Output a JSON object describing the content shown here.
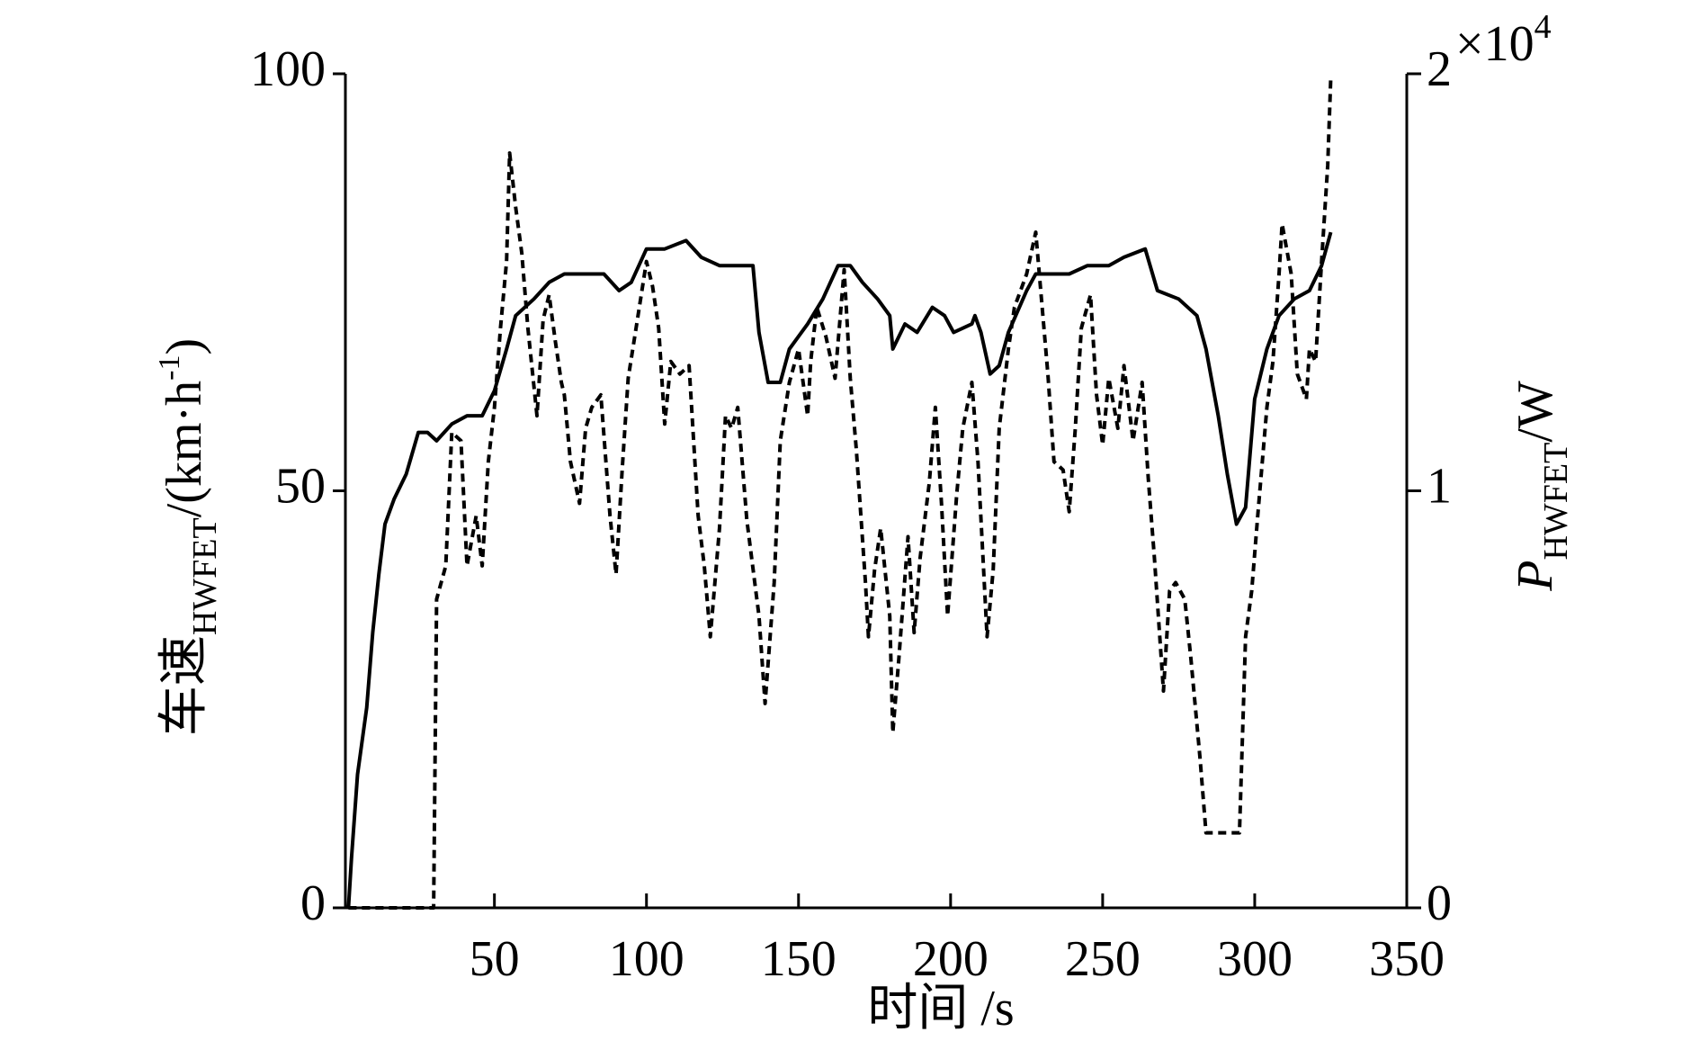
{
  "chart_data": {
    "type": "line",
    "x_label": "时间 /s",
    "y_label": {
      "text": "车速",
      "subscript": "HWFET",
      "unit": "/(km·h",
      "superscript": "-1",
      "close": ")"
    },
    "y2_label": {
      "text": "P",
      "subscript": "HWFET",
      "unit": "/W"
    },
    "y2_multiplier": {
      "text": "×10",
      "superscript": "4"
    },
    "xlim": [
      1,
      350
    ],
    "xticks": [
      50,
      100,
      150,
      200,
      250,
      300,
      350
    ],
    "ylim": [
      0,
      100
    ],
    "yticks": [
      0,
      50,
      100
    ],
    "y2lim": [
      0,
      20000
    ],
    "y2ticks": [
      {
        "value": 0,
        "label": "0"
      },
      {
        "value": 10000,
        "label": "1"
      },
      {
        "value": 20000,
        "label": "2"
      }
    ],
    "series": [
      {
        "color": "#000000",
        "style": "solid",
        "x": [
          2,
          3,
          5,
          8,
          10,
          12,
          14,
          17,
          21,
          25,
          28,
          31,
          36,
          41,
          46,
          50,
          54,
          57,
          63,
          68,
          73,
          79,
          86,
          91,
          95,
          100,
          106,
          113,
          118,
          124,
          129,
          135,
          137,
          140,
          144,
          147,
          153,
          158,
          163,
          167,
          171,
          176,
          180,
          181,
          185,
          189,
          194,
          198,
          201,
          207,
          208,
          210,
          213,
          216,
          219,
          225,
          228,
          234,
          239,
          245,
          252,
          257,
          264,
          268,
          275,
          281,
          284,
          288,
          291,
          294,
          297,
          300,
          304,
          308,
          313,
          318,
          322,
          325
        ],
        "values": [
          0,
          6,
          16,
          24,
          33,
          40,
          46,
          49,
          52,
          57,
          57,
          56,
          58,
          59,
          59,
          62,
          67,
          71,
          73,
          75,
          76,
          76,
          76,
          74,
          75,
          79,
          79,
          80,
          78,
          77,
          77,
          77,
          69,
          63,
          63,
          67,
          70,
          73,
          77,
          77,
          75,
          73,
          71,
          67,
          70,
          69,
          72,
          71,
          69,
          70,
          71,
          69,
          64,
          65,
          69,
          74,
          76,
          76,
          76,
          77,
          77,
          78,
          79,
          74,
          73,
          71,
          67,
          59,
          52,
          46,
          48,
          61,
          67,
          71,
          73,
          74,
          77,
          81
        ]
      },
      {
        "color": "#000000",
        "style": "dashed",
        "axis": "y2",
        "x": [
          2,
          30,
          31,
          34,
          36,
          39,
          41,
          44,
          46,
          48,
          50,
          52,
          54,
          55,
          57,
          59,
          61,
          64,
          66,
          68,
          70,
          72,
          73,
          75,
          78,
          80,
          82,
          85,
          88,
          90,
          92,
          94,
          97,
          100,
          102,
          104,
          106,
          108,
          111,
          114,
          117,
          119,
          121,
          124,
          126,
          128,
          130,
          133,
          137,
          139,
          142,
          144,
          147,
          150,
          153,
          154,
          156,
          159,
          162,
          165,
          167,
          169,
          172,
          173,
          175,
          177,
          180,
          181,
          183,
          186,
          188,
          190,
          193,
          195,
          197,
          199,
          202,
          204,
          207,
          209,
          212,
          214,
          216,
          219,
          221,
          225,
          228,
          232,
          234,
          237,
          239,
          241,
          243,
          246,
          248,
          250,
          252,
          255,
          257,
          260,
          263,
          265,
          267,
          270,
          272,
          274,
          277,
          279,
          282,
          284,
          290,
          295,
          297,
          299,
          301,
          304,
          306,
          308,
          309,
          312,
          314,
          317,
          318,
          320,
          322,
          324,
          325
        ],
        "values": [
          0,
          0,
          7400,
          8200,
          11400,
          11200,
          8200,
          9400,
          8200,
          10700,
          12000,
          13900,
          15500,
          18100,
          16800,
          15700,
          13900,
          11800,
          14100,
          14700,
          13600,
          12600,
          12300,
          10700,
          9700,
          11500,
          12000,
          12300,
          9400,
          8000,
          10500,
          12700,
          14100,
          15500,
          14900,
          13900,
          11600,
          13100,
          12800,
          13000,
          9400,
          8200,
          6500,
          9100,
          11800,
          11500,
          12000,
          9300,
          7000,
          4900,
          7800,
          11200,
          12600,
          13400,
          11800,
          13100,
          14400,
          13700,
          12700,
          15300,
          12700,
          11000,
          7800,
          6500,
          8100,
          9100,
          7000,
          4200,
          6000,
          8900,
          6600,
          8400,
          10200,
          12000,
          9700,
          7000,
          9900,
          11500,
          12600,
          10700,
          6500,
          8100,
          11500,
          13400,
          14400,
          15200,
          16200,
          12800,
          10700,
          10500,
          9500,
          11500,
          13900,
          14700,
          12300,
          11100,
          12700,
          11500,
          13000,
          11200,
          12600,
          10300,
          8400,
          5200,
          7600,
          7800,
          7400,
          6000,
          3600,
          1800,
          1800,
          1800,
          6500,
          7600,
          9400,
          12000,
          13100,
          15200,
          16400,
          15200,
          12800,
          12200,
          13400,
          13100,
          15500,
          17800,
          19900
        ]
      }
    ]
  }
}
